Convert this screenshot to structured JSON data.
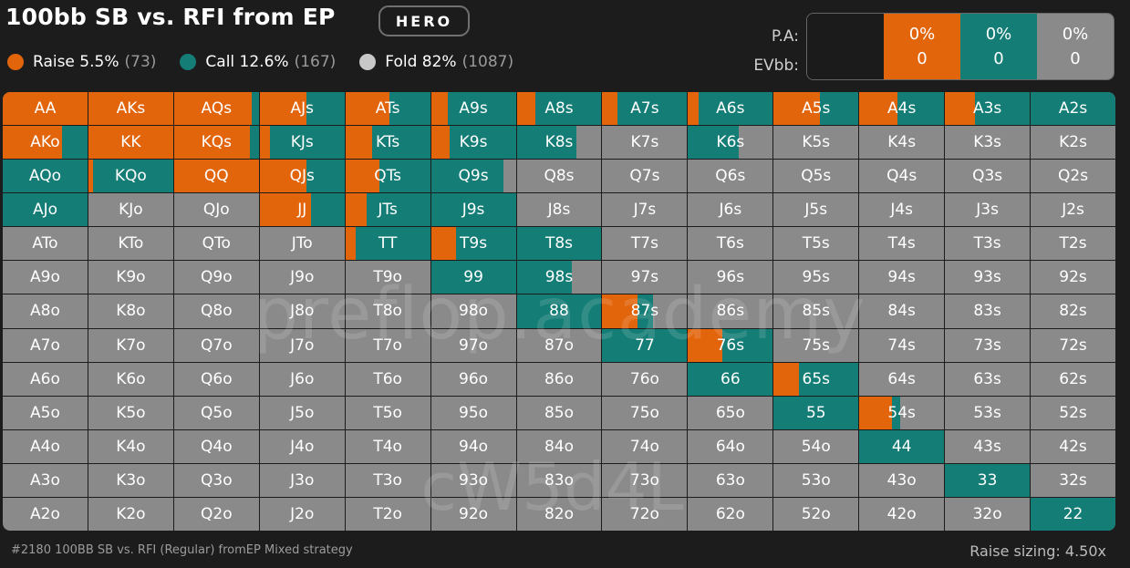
{
  "header": {
    "title": "100bb SB vs. RFI from EP",
    "badge": "HERO"
  },
  "colors": {
    "raise": "#e2650c",
    "call": "#147d76",
    "fold": "#8a8a8a",
    "background": "#1c1c1d"
  },
  "legend": [
    {
      "key": "raise",
      "label": "Raise 5.5%",
      "count": "(73)"
    },
    {
      "key": "call",
      "label": "Call 12.6%",
      "count": "(167)"
    },
    {
      "key": "fold",
      "label": "Fold 82%",
      "count": "(1087)"
    }
  ],
  "pa_panel": {
    "labels": [
      "P.A:",
      "EVbb:"
    ],
    "columns": [
      {
        "key": "raise",
        "pct": "0%",
        "ev": "0"
      },
      {
        "key": "call",
        "pct": "0%",
        "ev": "0"
      },
      {
        "key": "fold",
        "pct": "0%",
        "ev": "0"
      }
    ]
  },
  "watermarks": [
    "preflop.academy",
    "cW5d4L"
  ],
  "footer": {
    "left": "#2180 100BB SB vs. RFI (Regular) fromEP Mixed strategy",
    "right": "Raise sizing: 4.50x"
  },
  "hands": [
    [
      "AA",
      "AKs",
      "AQs",
      "AJs",
      "ATs",
      "A9s",
      "A8s",
      "A7s",
      "A6s",
      "A5s",
      "A4s",
      "A3s",
      "A2s"
    ],
    [
      "AKo",
      "KK",
      "KQs",
      "KJs",
      "KTs",
      "K9s",
      "K8s",
      "K7s",
      "K6s",
      "K5s",
      "K4s",
      "K3s",
      "K2s"
    ],
    [
      "AQo",
      "KQo",
      "QQ",
      "QJs",
      "QTs",
      "Q9s",
      "Q8s",
      "Q7s",
      "Q6s",
      "Q5s",
      "Q4s",
      "Q3s",
      "Q2s"
    ],
    [
      "AJo",
      "KJo",
      "QJo",
      "JJ",
      "JTs",
      "J9s",
      "J8s",
      "J7s",
      "J6s",
      "J5s",
      "J4s",
      "J3s",
      "J2s"
    ],
    [
      "ATo",
      "KTo",
      "QTo",
      "JTo",
      "TT",
      "T9s",
      "T8s",
      "T7s",
      "T6s",
      "T5s",
      "T4s",
      "T3s",
      "T2s"
    ],
    [
      "A9o",
      "K9o",
      "Q9o",
      "J9o",
      "T9o",
      "99",
      "98s",
      "97s",
      "96s",
      "95s",
      "94s",
      "93s",
      "92s"
    ],
    [
      "A8o",
      "K8o",
      "Q8o",
      "J8o",
      "T8o",
      "98o",
      "88",
      "87s",
      "86s",
      "85s",
      "84s",
      "83s",
      "82s"
    ],
    [
      "A7o",
      "K7o",
      "Q7o",
      "J7o",
      "T7o",
      "97o",
      "87o",
      "77",
      "76s",
      "75s",
      "74s",
      "73s",
      "72s"
    ],
    [
      "A6o",
      "K6o",
      "Q6o",
      "J6o",
      "T6o",
      "96o",
      "86o",
      "76o",
      "66",
      "65s",
      "64s",
      "63s",
      "62s"
    ],
    [
      "A5o",
      "K5o",
      "Q5o",
      "J5o",
      "T5o",
      "95o",
      "85o",
      "75o",
      "65o",
      "55",
      "54s",
      "53s",
      "52s"
    ],
    [
      "A4o",
      "K4o",
      "Q4o",
      "J4o",
      "T4o",
      "94o",
      "84o",
      "74o",
      "64o",
      "54o",
      "44",
      "43s",
      "42s"
    ],
    [
      "A3o",
      "K3o",
      "Q3o",
      "J3o",
      "T3o",
      "93o",
      "83o",
      "73o",
      "63o",
      "53o",
      "43o",
      "33",
      "32s"
    ],
    [
      "A2o",
      "K2o",
      "Q2o",
      "J2o",
      "T2o",
      "92o",
      "82o",
      "72o",
      "62o",
      "52o",
      "42o",
      "32o",
      "22"
    ]
  ],
  "strategy": {
    "AA": [
      100,
      0
    ],
    "AKs": [
      100,
      0
    ],
    "AQs": [
      92,
      8
    ],
    "AJs": [
      55,
      45
    ],
    "ATs": [
      52,
      48
    ],
    "A9s": [
      20,
      80
    ],
    "A8s": [
      22,
      78
    ],
    "A7s": [
      18,
      82
    ],
    "A6s": [
      12,
      88
    ],
    "A5s": [
      55,
      45
    ],
    "A4s": [
      45,
      55
    ],
    "A3s": [
      35,
      65
    ],
    "A2s": [
      0,
      100
    ],
    "AKo": [
      70,
      30
    ],
    "KK": [
      100,
      0
    ],
    "KQs": [
      90,
      10
    ],
    "KJs": [
      12,
      88
    ],
    "KTs": [
      32,
      68
    ],
    "K9s": [
      22,
      78
    ],
    "K8s": [
      0,
      70
    ],
    "K6s": [
      0,
      60
    ],
    "AQo": [
      0,
      100
    ],
    "KQo": [
      5,
      95
    ],
    "QQ": [
      100,
      0
    ],
    "QJs": [
      55,
      45
    ],
    "QTs": [
      40,
      60
    ],
    "Q9s": [
      0,
      85
    ],
    "AJo": [
      0,
      100
    ],
    "JJ": [
      60,
      40
    ],
    "JTs": [
      25,
      75
    ],
    "J9s": [
      0,
      100
    ],
    "TT": [
      12,
      88
    ],
    "T9s": [
      30,
      70
    ],
    "T8s": [
      0,
      100
    ],
    "99": [
      0,
      100
    ],
    "98s": [
      0,
      65
    ],
    "88": [
      0,
      100
    ],
    "87s": [
      42,
      18
    ],
    "77": [
      0,
      100
    ],
    "76s": [
      40,
      60
    ],
    "66": [
      0,
      100
    ],
    "65s": [
      30,
      70
    ],
    "55": [
      0,
      100
    ],
    "54s": [
      38,
      10
    ],
    "44": [
      0,
      100
    ],
    "33": [
      0,
      100
    ],
    "22": [
      0,
      100
    ]
  }
}
